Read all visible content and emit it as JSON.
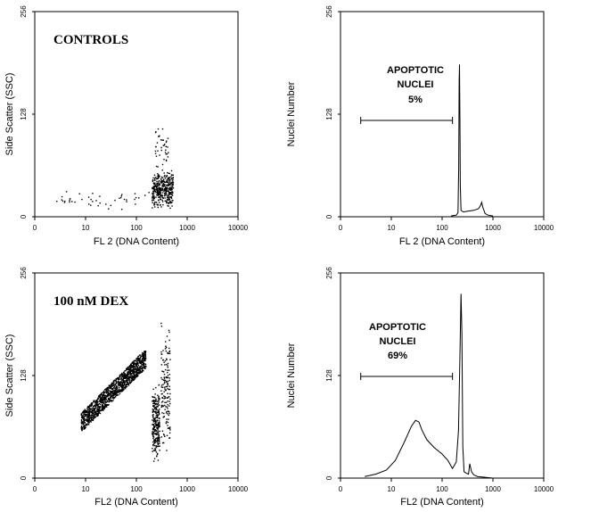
{
  "chart_data": [
    {
      "id": "p1",
      "type": "scatter",
      "title": "CONTROLS",
      "xlabel": "FL 2 (DNA Content)",
      "ylabel": "Side Scatter (SSC)",
      "xscale": "log",
      "xlim": [
        1,
        10000
      ],
      "ylim": [
        0,
        256
      ],
      "xticks": [
        "0",
        "10",
        "100",
        "1000",
        "10000"
      ],
      "yticks": [
        "0",
        "128",
        "256"
      ],
      "clusters": [
        {
          "label": "",
          "x_range": [
            200,
            520
          ],
          "y_range": [
            10,
            60
          ],
          "approx_points": 380
        },
        {
          "label": "",
          "x_range": [
            230,
            420
          ],
          "y_range": [
            60,
            120
          ],
          "approx_points": 40
        },
        {
          "label": "",
          "x_range": [
            2,
            200
          ],
          "y_range": [
            8,
            35
          ],
          "approx_points": 45
        }
      ]
    },
    {
      "id": "p2",
      "type": "line",
      "title": "",
      "xlabel": "FL 2 (DNA Content)",
      "ylabel": "Nuclei Number",
      "xscale": "log",
      "xlim": [
        1,
        10000
      ],
      "ylim": [
        0,
        256
      ],
      "xticks": [
        "0",
        "10",
        "100",
        "1000",
        "10000"
      ],
      "yticks": [
        "0",
        "128",
        "256"
      ],
      "series": [
        {
          "x": [
            150,
            190,
            205,
            212,
            216,
            220,
            224,
            228,
            235,
            260,
            320,
            420,
            520,
            570,
            600,
            630,
            700,
            800,
            1000
          ],
          "y": [
            1,
            2,
            5,
            60,
            170,
            190,
            120,
            40,
            8,
            6,
            7,
            8,
            10,
            14,
            18,
            12,
            4,
            2,
            1
          ]
        }
      ],
      "annotation": {
        "line1": "APOPTOTIC",
        "line2": "NUCLEI",
        "value": "5%"
      },
      "gate": [
        2.5,
        160
      ]
    },
    {
      "id": "p3",
      "type": "scatter",
      "title": "100 nM DEX",
      "xlabel": "FL2 (DNA Content)",
      "ylabel": "Side Scatter (SSC)",
      "xscale": "log",
      "xlim": [
        1,
        10000
      ],
      "ylim": [
        0,
        256
      ],
      "xticks": [
        "0",
        "10",
        "100",
        "1000",
        "10000"
      ],
      "yticks": [
        "0",
        "128",
        "256"
      ],
      "clusters": [
        {
          "label": "",
          "x_range": [
            8,
            150
          ],
          "y_range": [
            70,
            150
          ],
          "approx_points": 1300
        },
        {
          "label": "",
          "x_range": [
            200,
            280
          ],
          "y_range": [
            20,
            120
          ],
          "approx_points": 260
        },
        {
          "label": "",
          "x_range": [
            300,
            450
          ],
          "y_range": [
            30,
            200
          ],
          "approx_points": 160
        }
      ]
    },
    {
      "id": "p4",
      "type": "line",
      "title": "",
      "xlabel": "FL2 (DNA Content)",
      "ylabel": "Nuclei Number",
      "xscale": "log",
      "xlim": [
        1,
        10000
      ],
      "ylim": [
        0,
        256
      ],
      "xticks": [
        "0",
        "10",
        "100",
        "1000",
        "10000"
      ],
      "yticks": [
        "0",
        "128",
        "256"
      ],
      "series": [
        {
          "x": [
            3,
            5,
            8,
            12,
            18,
            25,
            30,
            35,
            40,
            50,
            70,
            100,
            130,
            160,
            190,
            210,
            225,
            235,
            245,
            255,
            270,
            300,
            330,
            350,
            380,
            420,
            500,
            700,
            1000
          ],
          "y": [
            2,
            5,
            10,
            22,
            45,
            65,
            72,
            70,
            60,
            48,
            38,
            30,
            22,
            12,
            20,
            60,
            160,
            230,
            180,
            40,
            8,
            6,
            5,
            18,
            8,
            4,
            2,
            1,
            0
          ]
        }
      ],
      "annotation": {
        "line1": "APOPTOTIC",
        "line2": "NUCLEI",
        "value": "69%"
      },
      "gate": [
        2.5,
        160
      ]
    }
  ]
}
